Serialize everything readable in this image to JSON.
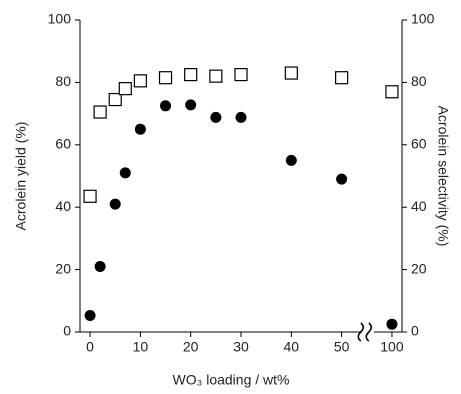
{
  "chart_data": {
    "type": "scatter",
    "x_label": "WO₃ loading / wt%",
    "y_label": "Acrolein yield (%)",
    "y2_label": "Acrolein selectivity (%)",
    "x": [
      0,
      2,
      5,
      7,
      10,
      15,
      20,
      25,
      30,
      40,
      50,
      100
    ],
    "series": [
      {
        "marker": "circle",
        "color": "#000000",
        "values": [
          5.3,
          21,
          41,
          51,
          65,
          72.5,
          72.8,
          68.8,
          68.8,
          55,
          49,
          2.5
        ]
      },
      {
        "marker": "square",
        "color": "#000000",
        "axis": "y2",
        "values": [
          43.5,
          70.5,
          74.5,
          78,
          80.5,
          81.5,
          82.5,
          82,
          82.5,
          83,
          81.5,
          77
        ]
      }
    ],
    "xlim": [
      -2,
      102
    ],
    "xbreak": [
      55,
      95
    ],
    "xticks": [
      0,
      10,
      20,
      30,
      40,
      50,
      100
    ],
    "ylim": [
      0,
      100
    ],
    "yticks": [
      0,
      20,
      40,
      60,
      80,
      100
    ],
    "y2lim": [
      0,
      100
    ],
    "y2ticks": [
      0,
      20,
      40,
      60,
      80,
      100
    ]
  }
}
